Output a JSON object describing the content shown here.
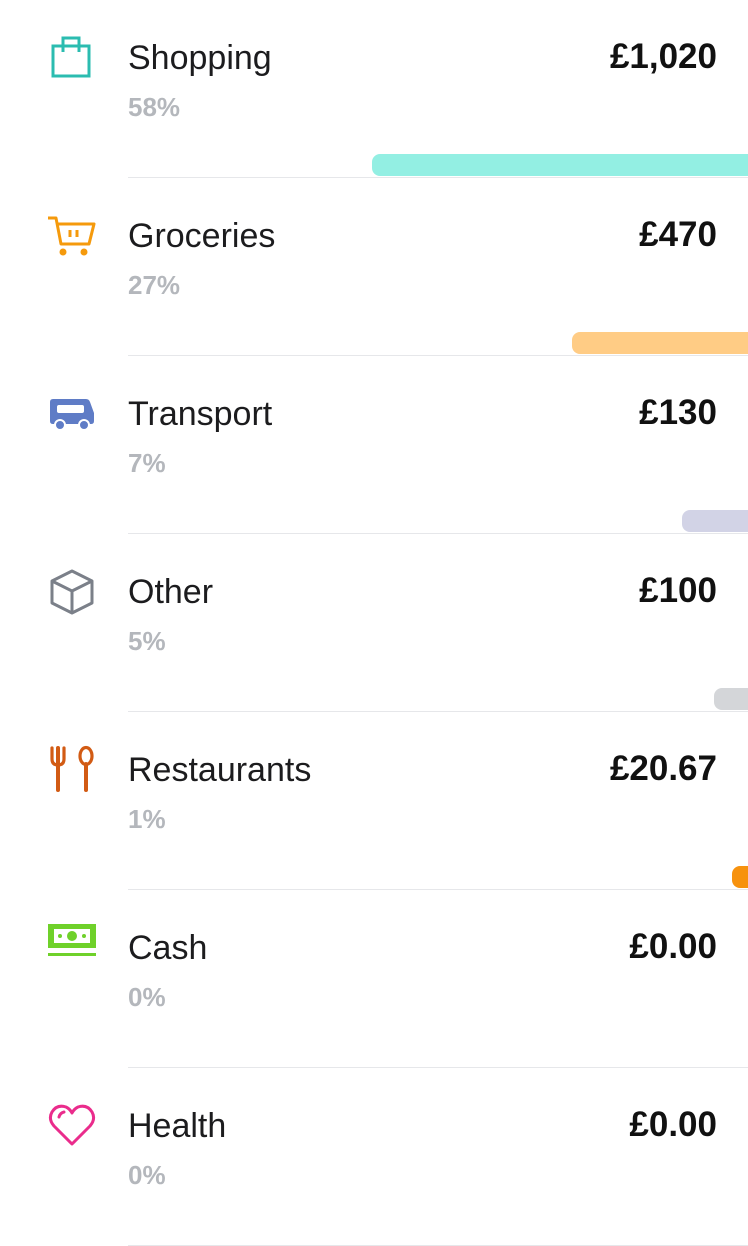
{
  "categories": [
    {
      "name": "Shopping",
      "percent": "58%",
      "amount": "£1,020",
      "icon": "shopping-bag-icon",
      "color": "#2bbcb0",
      "bar_color": "#93efe3",
      "bar_fraction": 0.5
    },
    {
      "name": "Groceries",
      "percent": "27%",
      "amount": "£470",
      "icon": "shopping-cart-icon",
      "color": "#f59a0c",
      "bar_color": "#ffcc85",
      "bar_fraction": 0.235
    },
    {
      "name": "Transport",
      "percent": "7%",
      "amount": "£130",
      "icon": "bus-icon",
      "color": "#5f7cc6",
      "bar_color": "#d2d3e6",
      "bar_fraction": 0.088
    },
    {
      "name": "Other",
      "percent": "5%",
      "amount": "£100",
      "icon": "box-icon",
      "color": "#7b8089",
      "bar_color": "#d4d6d9",
      "bar_fraction": 0.045
    },
    {
      "name": "Restaurants",
      "percent": "1%",
      "amount": "£20.67",
      "icon": "fork-spoon-icon",
      "color": "#d25b14",
      "bar_color": "#f7920e",
      "bar_fraction": 0.02
    },
    {
      "name": "Cash",
      "percent": "0%",
      "amount": "£0.00",
      "icon": "banknote-icon",
      "color": "#6fd12a",
      "bar_color": "",
      "bar_fraction": 0
    },
    {
      "name": "Health",
      "percent": "0%",
      "amount": "£0.00",
      "icon": "heart-icon",
      "color": "#ea2c8c",
      "bar_color": "",
      "bar_fraction": 0
    }
  ]
}
